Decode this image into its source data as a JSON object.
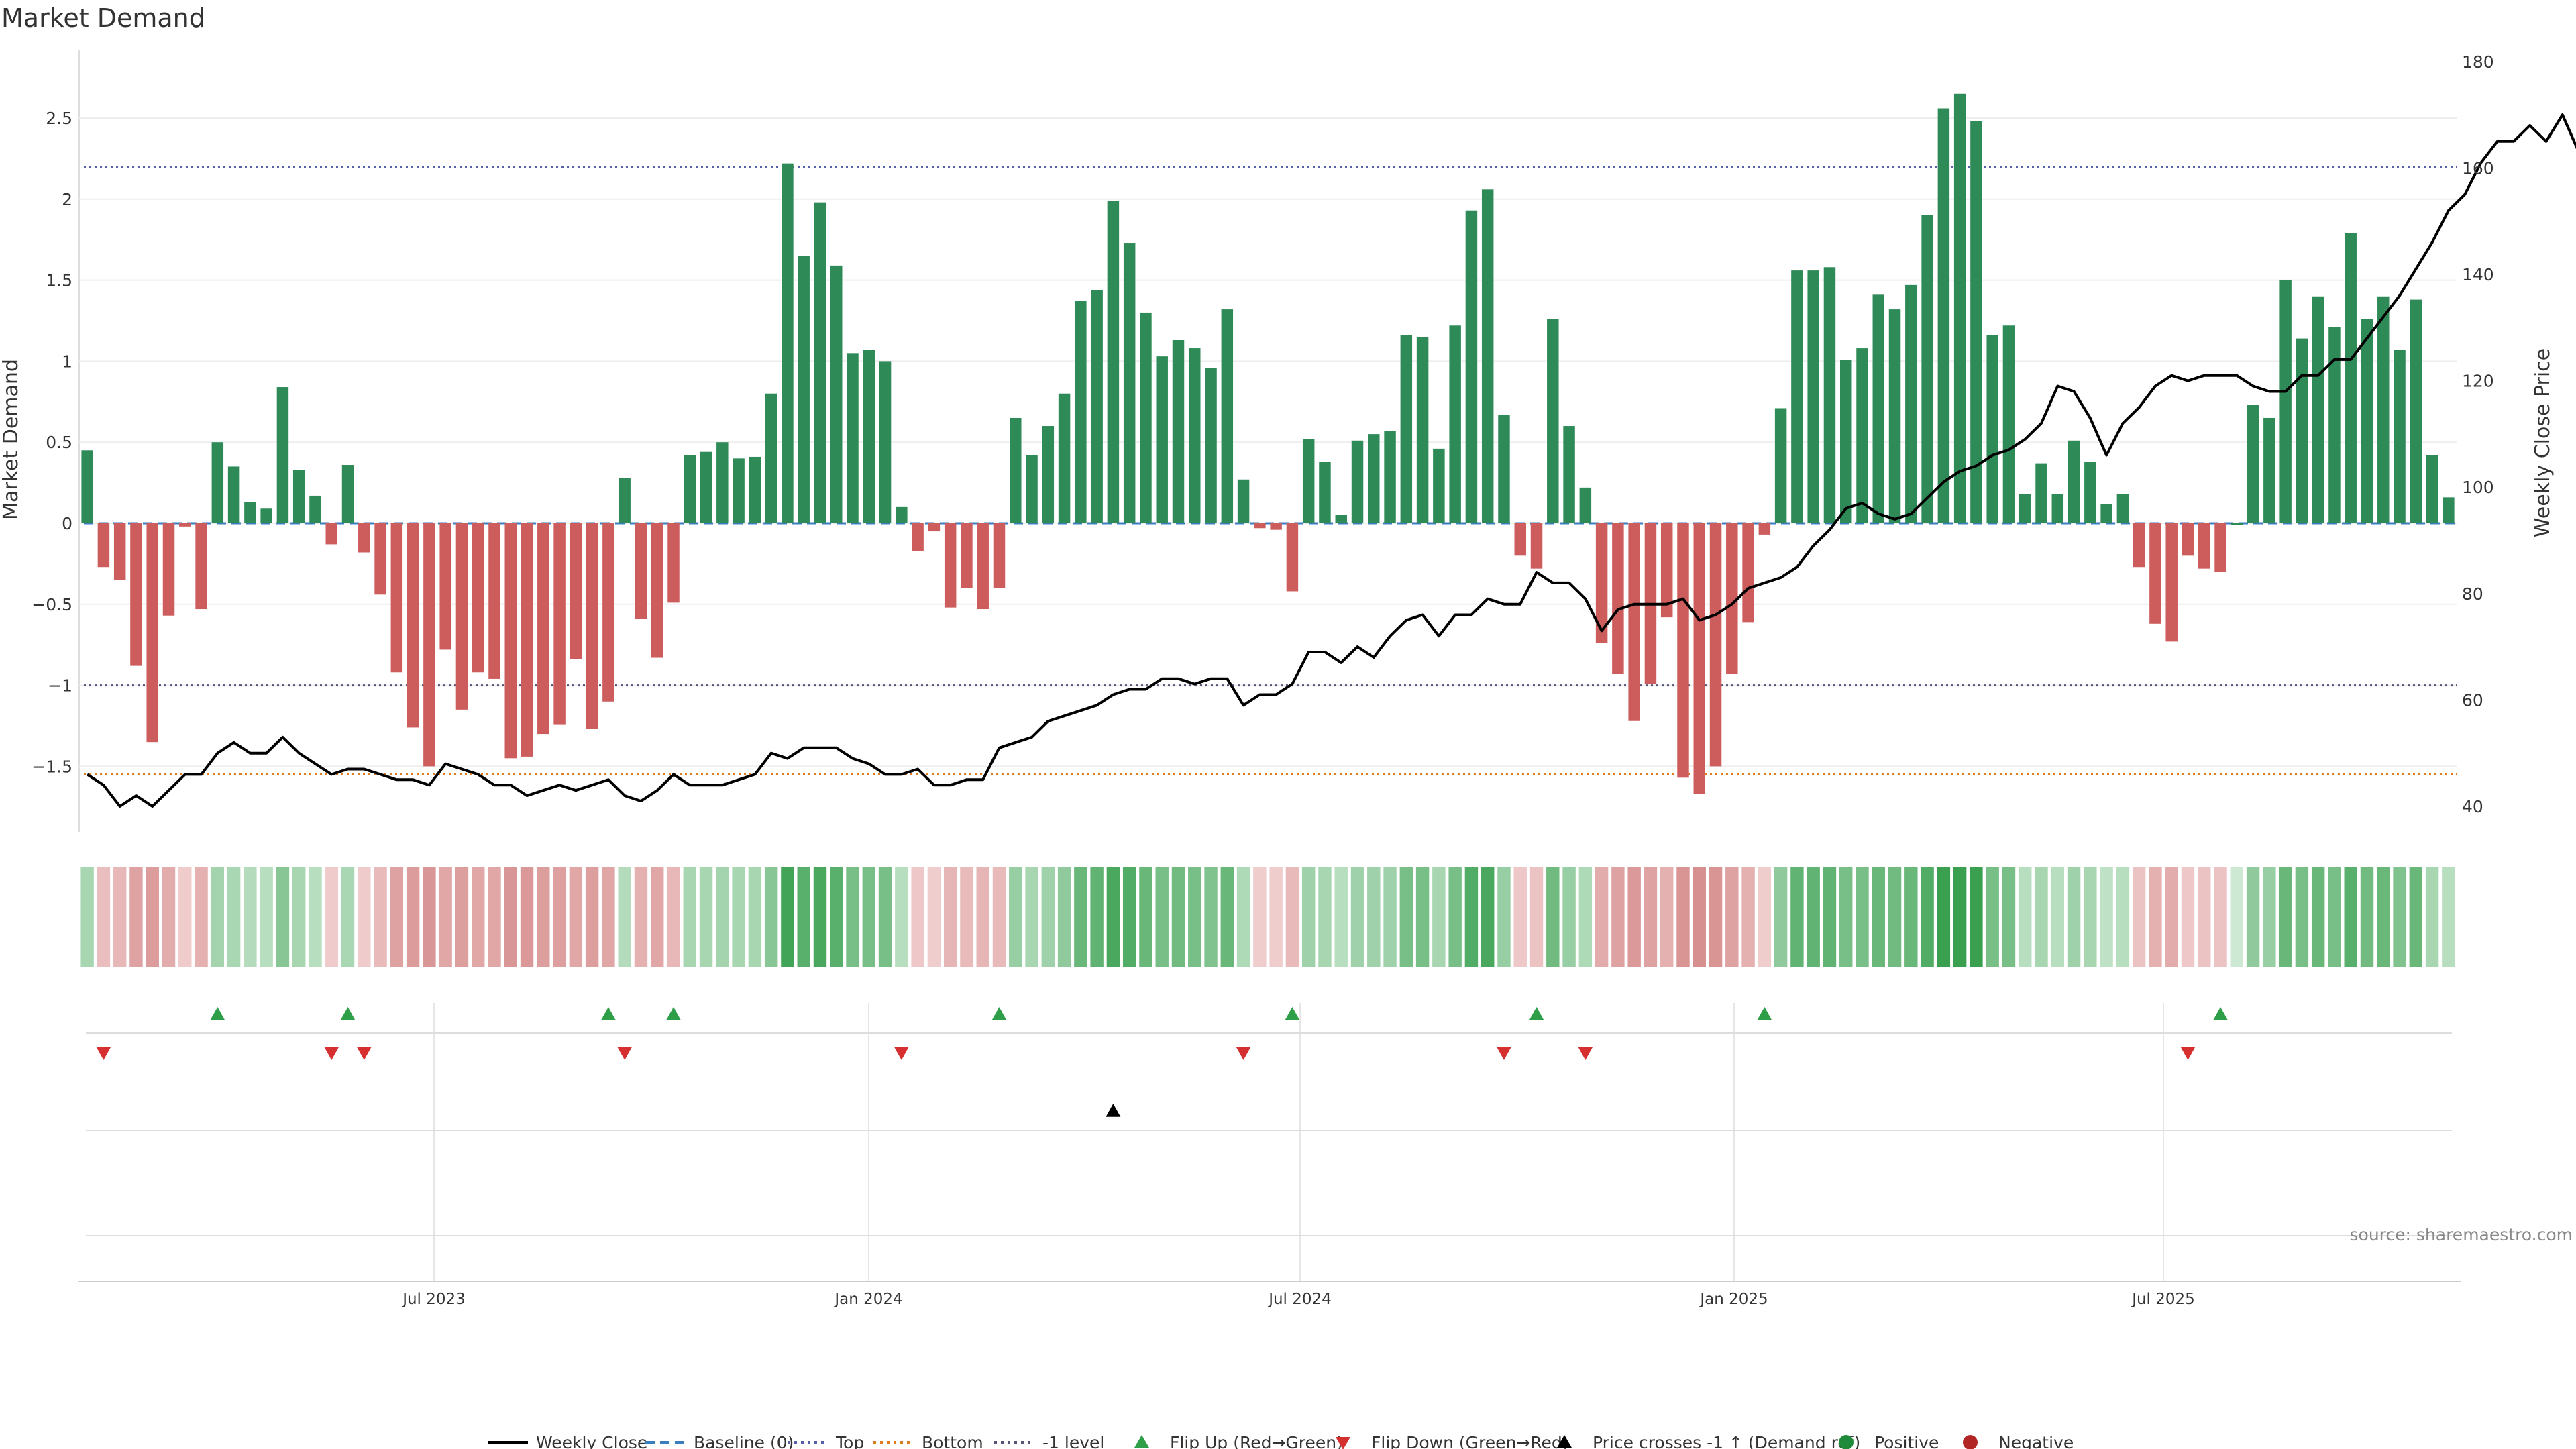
{
  "chart_data": {
    "type": "bar",
    "title": "Market Demand",
    "ylabel_left": "Market Demand",
    "ylabel_right": "Weekly Close Price",
    "ylim_left": [
      -1.9,
      2.9
    ],
    "ylim_right": [
      35,
      180
    ],
    "yticks_left": [
      "-1.5",
      "-1",
      "-0.5",
      "0",
      "0.5",
      "1",
      "1.5",
      "2",
      "2.5"
    ],
    "yticks_right": [
      "40",
      "60",
      "80",
      "100",
      "120",
      "140",
      "160",
      "180"
    ],
    "xticks": [
      "Jul 2023",
      "Jan 2024",
      "Jul 2024",
      "Jan 2025",
      "Jul 2025"
    ],
    "reference_lines": {
      "top": 2.2,
      "bottom": -1.55,
      "minus_one": -1.0
    },
    "grid": true,
    "legend_position": "bottom",
    "source_note": "source: sharemaestro.com",
    "series": [
      {
        "name": "Market Demand",
        "kind": "bar",
        "values": [
          0.45,
          -0.27,
          -0.35,
          -0.88,
          -1.35,
          -0.57,
          -0.02,
          -0.53,
          0.5,
          0.35,
          0.13,
          0.09,
          0.84,
          0.33,
          0.17,
          -0.13,
          0.36,
          -0.18,
          -0.44,
          -0.92,
          -1.26,
          -1.5,
          -0.78,
          -1.15,
          -0.92,
          -0.96,
          -1.45,
          -1.44,
          -1.3,
          -1.24,
          -0.84,
          -1.27,
          -1.1,
          0.28,
          -0.59,
          -0.83,
          -0.49,
          0.42,
          0.44,
          0.5,
          0.4,
          0.41,
          0.8,
          2.22,
          1.65,
          1.98,
          1.59,
          1.05,
          1.07,
          1.0,
          0.1,
          -0.17,
          -0.05,
          -0.52,
          -0.4,
          -0.53,
          -0.4,
          0.65,
          0.42,
          0.6,
          0.8,
          1.37,
          1.44,
          1.99,
          1.73,
          1.3,
          1.03,
          1.13,
          1.08,
          0.96,
          1.32,
          0.27,
          -0.03,
          -0.04,
          -0.42,
          0.52,
          0.38,
          0.05,
          0.51,
          0.55,
          0.57,
          1.16,
          1.15,
          0.46,
          1.22,
          1.93,
          2.06,
          0.67,
          -0.2,
          -0.28,
          1.26,
          0.6,
          0.22,
          -0.74,
          -0.93,
          -1.22,
          -0.99,
          -0.58,
          -1.57,
          -1.67,
          -1.5,
          -0.93,
          -0.61,
          -0.07,
          0.71,
          1.56,
          1.56,
          1.58,
          1.01,
          1.08,
          1.41,
          1.32,
          1.47,
          1.9,
          2.56,
          2.65,
          2.48,
          1.16,
          1.22,
          0.18,
          0.37,
          0.18,
          0.51,
          0.38,
          0.12,
          0.18,
          -0.27,
          -0.62,
          -0.73,
          -0.2,
          -0.28,
          -0.3,
          0.0,
          0.73,
          0.65,
          1.5,
          1.14,
          1.4,
          1.21,
          1.79,
          1.26,
          1.4,
          1.07,
          1.38,
          0.42,
          0.16
        ]
      },
      {
        "name": "Weekly Close",
        "kind": "line",
        "values": [
          46,
          44,
          40,
          42,
          40,
          43,
          46,
          46,
          50,
          52,
          50,
          50,
          53,
          50,
          48,
          46,
          47,
          47,
          46,
          45,
          45,
          44,
          48,
          47,
          46,
          44,
          44,
          42,
          43,
          44,
          43,
          44,
          45,
          42,
          41,
          43,
          46,
          44,
          44,
          44,
          45,
          46,
          50,
          49,
          51,
          51,
          51,
          49,
          48,
          46,
          46,
          47,
          44,
          44,
          45,
          45,
          51,
          52,
          53,
          56,
          57,
          58,
          59,
          61,
          62,
          62,
          64,
          64,
          63,
          64,
          64,
          59,
          61,
          61,
          63,
          69,
          69,
          67,
          70,
          68,
          72,
          75,
          76,
          72,
          76,
          76,
          79,
          78,
          78,
          84,
          82,
          82,
          79,
          73,
          77,
          78,
          78,
          78,
          79,
          75,
          76,
          78,
          81,
          82,
          83,
          85,
          89,
          92,
          96,
          97,
          95,
          94,
          95,
          98,
          101,
          103,
          104,
          106,
          107,
          109,
          112,
          119,
          118,
          113,
          106,
          112,
          115,
          119,
          121,
          120,
          121,
          121,
          121,
          119,
          118,
          118,
          121,
          121,
          124,
          124,
          128,
          132,
          136,
          141,
          146,
          152,
          155,
          161,
          165,
          165,
          168,
          165,
          170,
          163,
          161
        ]
      }
    ],
    "signal_bar_intensities": [
      0.3,
      -0.26,
      -0.32,
      -0.55,
      -0.62,
      -0.45,
      -0.12,
      -0.4,
      0.32,
      0.28,
      0.22,
      0.2,
      0.5,
      0.3,
      0.2,
      -0.12,
      0.28,
      -0.12,
      -0.3,
      -0.55,
      -0.62,
      -0.68,
      -0.5,
      -0.6,
      -0.5,
      -0.5,
      -0.68,
      -0.66,
      -0.6,
      -0.58,
      -0.5,
      -0.6,
      -0.52,
      0.22,
      -0.4,
      -0.5,
      -0.32,
      0.3,
      0.3,
      0.32,
      0.3,
      0.3,
      0.5,
      0.95,
      0.8,
      0.9,
      0.8,
      0.6,
      0.6,
      0.6,
      0.2,
      -0.15,
      -0.1,
      -0.35,
      -0.3,
      -0.35,
      -0.3,
      0.4,
      0.3,
      0.35,
      0.45,
      0.7,
      0.75,
      0.9,
      0.85,
      0.7,
      0.6,
      0.65,
      0.6,
      0.55,
      0.7,
      0.25,
      -0.1,
      -0.1,
      -0.3,
      0.35,
      0.3,
      0.2,
      0.35,
      0.35,
      0.35,
      0.6,
      0.6,
      0.3,
      0.6,
      0.85,
      0.9,
      0.4,
      -0.15,
      -0.2,
      0.65,
      0.4,
      0.25,
      -0.45,
      -0.55,
      -0.65,
      -0.55,
      -0.4,
      -0.7,
      -0.75,
      -0.7,
      -0.55,
      -0.4,
      -0.1,
      0.45,
      0.75,
      0.75,
      0.75,
      0.6,
      0.6,
      0.7,
      0.65,
      0.7,
      0.85,
      1.0,
      1.0,
      1.0,
      0.6,
      0.6,
      0.2,
      0.3,
      0.2,
      0.35,
      0.3,
      0.15,
      0.2,
      -0.2,
      -0.4,
      -0.45,
      -0.15,
      -0.2,
      -0.2,
      0.05,
      0.45,
      0.4,
      0.7,
      0.6,
      0.7,
      0.6,
      0.8,
      0.65,
      0.7,
      0.55,
      0.7,
      0.3,
      0.2
    ],
    "flip_up_weeks": [
      8,
      16,
      32,
      36,
      56,
      74,
      89,
      103,
      131
    ],
    "flip_down_weeks": [
      1,
      15,
      17,
      33,
      50,
      71,
      87,
      92,
      129
    ],
    "price_cross_weeks": [
      63
    ],
    "legend": [
      {
        "label": "Weekly Close",
        "symbol": "line",
        "color": "#000000"
      },
      {
        "label": "Baseline (0)",
        "symbol": "dash",
        "color": "#3b7ec0"
      },
      {
        "label": "Top",
        "symbol": "dot",
        "color": "#5560a8"
      },
      {
        "label": "Bottom",
        "symbol": "dot",
        "color": "#e07b1e"
      },
      {
        "label": "-1 level",
        "symbol": "dot",
        "color": "#555577"
      },
      {
        "label": "Flip Up (Red→Green)",
        "symbol": "triangle-up",
        "color": "#2e9e48"
      },
      {
        "label": "Flip Down (Green→Red)",
        "symbol": "triangle-down",
        "color": "#d62f2f"
      },
      {
        "label": "Price crosses -1 ↑ (Demand ref)",
        "symbol": "triangle-up",
        "color": "#000000"
      },
      {
        "label": "Positive",
        "symbol": "circle",
        "color": "#1f8a3a"
      },
      {
        "label": "Negative",
        "symbol": "circle",
        "color": "#b22525"
      }
    ],
    "colors": {
      "positive_bar": "#2e8b57",
      "negative_bar": "#cd5c5c",
      "price_line": "#000000",
      "top_line": "#5560a8",
      "bottom_line": "#e07b1e",
      "minus_one_line": "#555577",
      "baseline": "#3b7ec0"
    }
  }
}
